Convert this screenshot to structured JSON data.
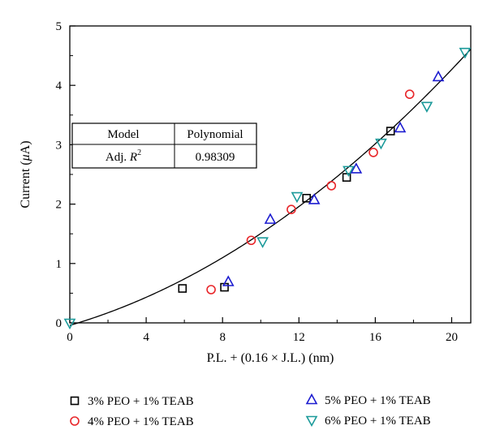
{
  "chart_data": {
    "type": "scatter",
    "xlabel": "P.L. + (0.16 × J.L.) (nm)",
    "ylabel_prefix": "Current (",
    "ylabel_mu": "μ",
    "ylabel_suffix": "A)",
    "xlim": [
      0,
      21
    ],
    "ylim": [
      0,
      5
    ],
    "x_ticks": [
      0,
      4,
      8,
      12,
      16,
      20
    ],
    "y_ticks": [
      0,
      1,
      2,
      3,
      4,
      5
    ],
    "grid": false,
    "legend_position": "bottom",
    "series": [
      {
        "name": "3% PEO + 1% TEAB",
        "marker": "square",
        "color": "#000000",
        "points": [
          [
            5.9,
            0.58
          ],
          [
            8.1,
            0.6
          ],
          [
            12.4,
            2.1
          ],
          [
            14.5,
            2.45
          ],
          [
            16.8,
            3.23
          ]
        ]
      },
      {
        "name": "4% PEO + 1% TEAB",
        "marker": "circle",
        "color": "#e8262a",
        "points": [
          [
            7.4,
            0.56
          ],
          [
            9.5,
            1.39
          ],
          [
            11.6,
            1.91
          ],
          [
            13.7,
            2.31
          ],
          [
            15.9,
            2.87
          ],
          [
            17.8,
            3.85
          ]
        ]
      },
      {
        "name": "5% PEO + 1% TEAB",
        "marker": "triangle-up",
        "color": "#1c1cd0",
        "points": [
          [
            8.3,
            0.69
          ],
          [
            10.5,
            1.74
          ],
          [
            12.8,
            2.07
          ],
          [
            15.0,
            2.59
          ],
          [
            17.3,
            3.28
          ],
          [
            19.3,
            4.14
          ]
        ]
      },
      {
        "name": "6% PEO + 1% TEAB",
        "marker": "triangle-down",
        "color": "#1b9a9a",
        "points": [
          [
            0.0,
            0.0
          ],
          [
            10.1,
            1.37
          ],
          [
            11.9,
            2.13
          ],
          [
            14.6,
            2.57
          ],
          [
            16.3,
            3.03
          ],
          [
            18.7,
            3.65
          ],
          [
            20.7,
            4.56
          ]
        ]
      }
    ],
    "fit_curve": {
      "type": "polynomial",
      "coefficients": [
        -0.0415,
        0.0938,
        0.00608
      ]
    },
    "fit_table": {
      "header_left": "Model",
      "header_right": "Polynomial",
      "row_left_prefix": "Adj. ",
      "row_left_var": "R",
      "row_left_sup": "2",
      "row_right": "0.98309"
    }
  }
}
